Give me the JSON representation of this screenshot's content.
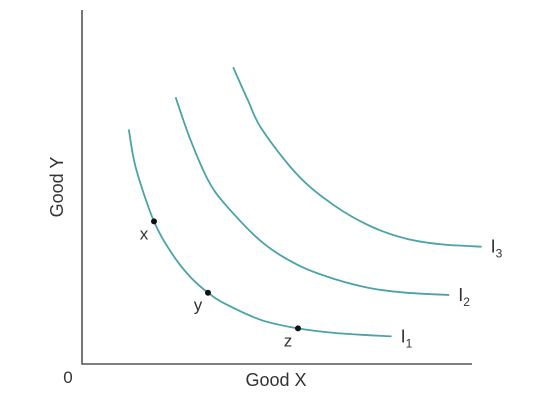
{
  "chart_data": {
    "type": "line",
    "xlabel": "Good X",
    "ylabel": "Good Y",
    "origin_label": "0",
    "grid": false,
    "legend": "none",
    "curve_color": "#4aa3a8",
    "point_color": "#111111",
    "series": [
      {
        "label_main": "I",
        "label_sub": "1",
        "points": [
          [
            1.3,
            10.2
          ],
          [
            1.5,
            8.5
          ],
          [
            2.0,
            6.2
          ],
          [
            2.5,
            4.8
          ],
          [
            3.0,
            3.8
          ],
          [
            3.5,
            3.1
          ],
          [
            4.0,
            2.6
          ],
          [
            5.0,
            1.9
          ],
          [
            6.0,
            1.55
          ],
          [
            7.0,
            1.35
          ],
          [
            8.0,
            1.25
          ],
          [
            8.6,
            1.2
          ]
        ]
      },
      {
        "label_main": "I",
        "label_sub": "2",
        "points": [
          [
            2.6,
            11.6
          ],
          [
            3.0,
            9.8
          ],
          [
            3.5,
            8.0
          ],
          [
            4.0,
            6.9
          ],
          [
            5.0,
            5.3
          ],
          [
            6.0,
            4.3
          ],
          [
            7.0,
            3.7
          ],
          [
            8.0,
            3.3
          ],
          [
            9.0,
            3.1
          ],
          [
            10.2,
            3.0
          ]
        ]
      },
      {
        "label_main": "I",
        "label_sub": "3",
        "points": [
          [
            4.2,
            12.9
          ],
          [
            4.6,
            11.5
          ],
          [
            5.0,
            10.2
          ],
          [
            6.0,
            8.2
          ],
          [
            7.0,
            6.9
          ],
          [
            8.0,
            6.0
          ],
          [
            9.0,
            5.45
          ],
          [
            10.0,
            5.2
          ],
          [
            11.1,
            5.1
          ]
        ]
      }
    ],
    "points": [
      {
        "label": "x",
        "x": 2.0,
        "y": 6.2
      },
      {
        "label": "y",
        "x": 3.5,
        "y": 3.1
      },
      {
        "label": "z",
        "x": 6.0,
        "y": 1.55
      }
    ]
  }
}
